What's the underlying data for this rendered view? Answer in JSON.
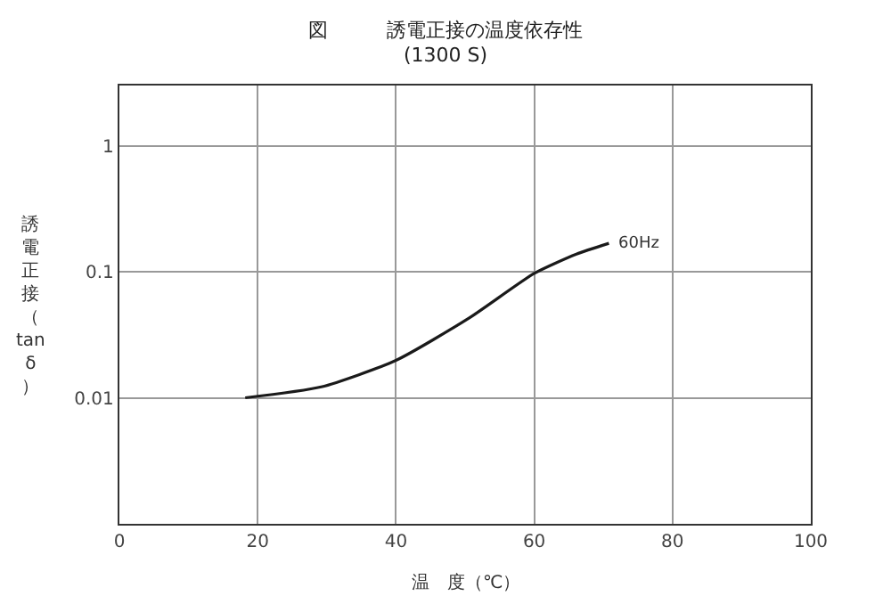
{
  "chart_data": {
    "type": "line",
    "title": "図　　　誘電正接の温度依存性",
    "subtitle": "(1300 S)",
    "xlabel": "温　度（℃）",
    "ylabel": "誘電正接（tanδ）",
    "log": "y",
    "xlim": [
      0,
      100
    ],
    "xticks": [
      0,
      20,
      40,
      60,
      80,
      100
    ],
    "ylim": [
      0.001,
      3
    ],
    "yticks": [
      0.01,
      0.1,
      1
    ],
    "grid": true,
    "legend": false,
    "marker": "none",
    "line_style": "solid",
    "series": [
      {
        "name": "60Hz",
        "color": "#1a1a1a",
        "x": [
          18.2,
          29.2,
          40,
          50.6,
          60,
          66.1,
          70.8
        ],
        "values": [
          0.01,
          0.0122,
          0.0198,
          0.043,
          0.097,
          0.138,
          0.168
        ]
      }
    ]
  }
}
